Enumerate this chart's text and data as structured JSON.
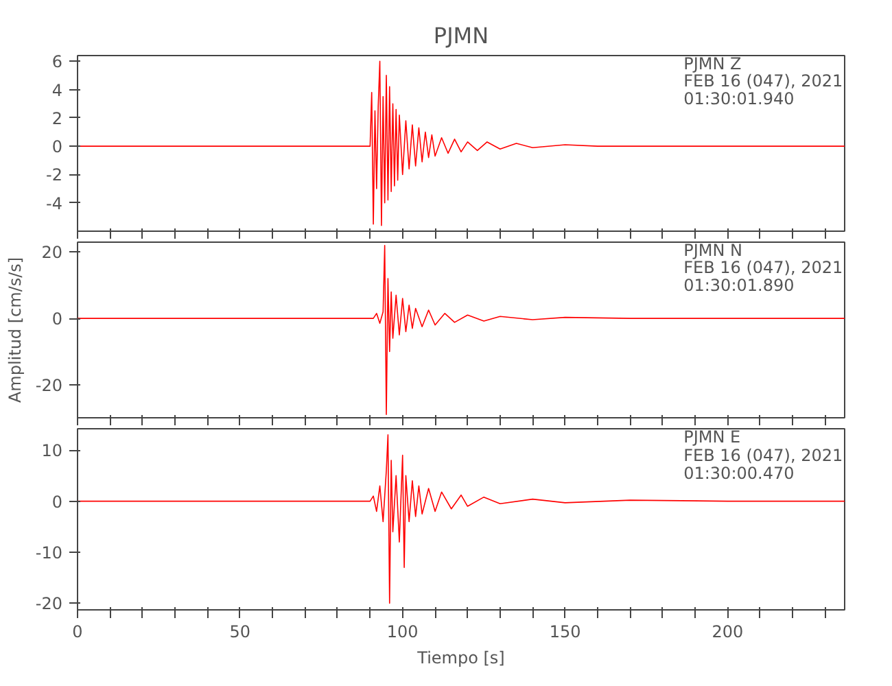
{
  "chart_data": [
    {
      "type": "line",
      "title": "PJMN",
      "xlim": [
        0,
        236
      ],
      "ylim": [
        -6.0,
        6.4
      ],
      "yticks": [
        -4,
        -2,
        0,
        2,
        4,
        6
      ],
      "tick_labels": "y",
      "grid": false,
      "line_style": "solid",
      "xticks": [
        0,
        {
          "value": 10,
          "label": null
        },
        {
          "value": 20,
          "label": null
        },
        {
          "value": 30,
          "label": null
        },
        {
          "value": 40,
          "label": null
        },
        50,
        {
          "value": 60,
          "label": null
        },
        {
          "value": 70,
          "label": null
        },
        {
          "value": 80,
          "label": null
        },
        {
          "value": 90,
          "label": null
        },
        100,
        {
          "value": 110,
          "label": null
        },
        {
          "value": 120,
          "label": null
        },
        {
          "value": 130,
          "label": null
        },
        {
          "value": 140,
          "label": null
        },
        150,
        {
          "value": 160,
          "label": null
        },
        {
          "value": 170,
          "label": null
        },
        {
          "value": 180,
          "label": null
        },
        {
          "value": 190,
          "label": null
        },
        200,
        {
          "value": 210,
          "label": null
        },
        {
          "value": 220,
          "label": null
        },
        {
          "value": 230,
          "label": null
        }
      ],
      "annotations": [
        "PJMN Z",
        "FEB 16 (047), 2021",
        "01:30:01.940"
      ],
      "series": [
        {
          "color": "#ff0000",
          "x": [
            0,
            20,
            40,
            60,
            80,
            90,
            90.5,
            91,
            91.5,
            92,
            92.5,
            93,
            93.5,
            94,
            94.5,
            95,
            95.5,
            96,
            96.5,
            97,
            97.5,
            98,
            98.5,
            99,
            100,
            101,
            102,
            103,
            104,
            105,
            106,
            107,
            108,
            109,
            110,
            112,
            114,
            116,
            118,
            120,
            123,
            126,
            130,
            135,
            140,
            150,
            160,
            180,
            200,
            220,
            236
          ],
          "values": [
            0,
            0,
            0,
            0,
            0,
            0,
            3.8,
            -5.5,
            2.5,
            -3.0,
            2.8,
            6.0,
            -5.6,
            3.5,
            -4.0,
            5.0,
            -3.8,
            4.2,
            -3.2,
            3.0,
            -2.8,
            2.6,
            -2.4,
            2.2,
            -2.0,
            1.8,
            -1.6,
            1.5,
            -1.4,
            1.3,
            -1.1,
            1.0,
            -0.8,
            0.8,
            -0.7,
            0.6,
            -0.5,
            0.5,
            -0.4,
            0.3,
            -0.3,
            0.3,
            -0.2,
            0.2,
            -0.1,
            0.1,
            0,
            0,
            0,
            0,
            0
          ]
        }
      ]
    },
    {
      "type": "line",
      "ylabel": "Amplitud [cm/s/s]",
      "xlim": [
        0,
        236
      ],
      "ylim": [
        -30,
        23
      ],
      "yticks": [
        -20,
        0,
        20
      ],
      "tick_labels": "y",
      "grid": false,
      "line_style": "solid",
      "xticks": [
        0,
        {
          "value": 10,
          "label": null
        },
        {
          "value": 20,
          "label": null
        },
        {
          "value": 30,
          "label": null
        },
        {
          "value": 40,
          "label": null
        },
        50,
        {
          "value": 60,
          "label": null
        },
        {
          "value": 70,
          "label": null
        },
        {
          "value": 80,
          "label": null
        },
        {
          "value": 90,
          "label": null
        },
        100,
        {
          "value": 110,
          "label": null
        },
        {
          "value": 120,
          "label": null
        },
        {
          "value": 130,
          "label": null
        },
        {
          "value": 140,
          "label": null
        },
        150,
        {
          "value": 160,
          "label": null
        },
        {
          "value": 170,
          "label": null
        },
        {
          "value": 180,
          "label": null
        },
        {
          "value": 190,
          "label": null
        },
        200,
        {
          "value": 210,
          "label": null
        },
        {
          "value": 220,
          "label": null
        },
        {
          "value": 230,
          "label": null
        }
      ],
      "annotations": [
        "PJMN N",
        "FEB 16 (047), 2021",
        "01:30:01.890"
      ],
      "series": [
        {
          "color": "#ff0000",
          "x": [
            0,
            40,
            80,
            91,
            92,
            93,
            94,
            94.5,
            95,
            95.5,
            96,
            96.5,
            97,
            98,
            99,
            100,
            101,
            102,
            103,
            104,
            106,
            108,
            110,
            113,
            116,
            120,
            125,
            130,
            140,
            150,
            170,
            200,
            236
          ],
          "values": [
            0,
            0,
            0,
            0,
            1.5,
            -1.5,
            2,
            22,
            -29,
            12,
            -10,
            8,
            -6,
            7,
            -5,
            6,
            -4,
            4,
            -3,
            3,
            -2.5,
            2.5,
            -2,
            1.5,
            -1.2,
            1,
            -0.8,
            0.6,
            -0.4,
            0.3,
            0,
            0,
            0
          ]
        }
      ]
    },
    {
      "type": "line",
      "xlabel": "Tiempo [s]",
      "xlim": [
        0,
        236
      ],
      "ylim": [
        -21.3,
        14.2
      ],
      "yticks": [
        -20,
        -10,
        0,
        10
      ],
      "grid": false,
      "line_style": "solid",
      "xticks": [
        0,
        {
          "value": 10,
          "label": null
        },
        {
          "value": 20,
          "label": null
        },
        {
          "value": 30,
          "label": null
        },
        {
          "value": 40,
          "label": null
        },
        50,
        {
          "value": 60,
          "label": null
        },
        {
          "value": 70,
          "label": null
        },
        {
          "value": 80,
          "label": null
        },
        {
          "value": 90,
          "label": null
        },
        100,
        {
          "value": 110,
          "label": null
        },
        {
          "value": 120,
          "label": null
        },
        {
          "value": 130,
          "label": null
        },
        {
          "value": 140,
          "label": null
        },
        150,
        {
          "value": 160,
          "label": null
        },
        {
          "value": 170,
          "label": null
        },
        {
          "value": 180,
          "label": null
        },
        {
          "value": 190,
          "label": null
        },
        200,
        {
          "value": 210,
          "label": null
        },
        {
          "value": 220,
          "label": null
        },
        {
          "value": 230,
          "label": null
        }
      ],
      "annotations": [
        "PJMN E",
        "FEB 16 (047), 2021",
        "01:30:00.470"
      ],
      "series": [
        {
          "color": "#ff0000",
          "x": [
            0,
            40,
            80,
            90,
            91,
            92,
            93,
            94,
            95,
            95.5,
            96,
            96.5,
            97,
            98,
            99,
            100,
            100.5,
            101,
            102,
            103,
            104,
            105,
            106,
            108,
            110,
            112,
            115,
            118,
            120,
            125,
            130,
            140,
            150,
            170,
            200,
            236
          ],
          "values": [
            0,
            0,
            0,
            0,
            1,
            -2,
            3,
            -4,
            6,
            13,
            -20,
            8,
            -6,
            5,
            -8,
            9,
            -13,
            5,
            -4,
            4,
            -3,
            3,
            -2.5,
            2.5,
            -2,
            1.8,
            -1.5,
            1.2,
            -1,
            0.8,
            -0.5,
            0.4,
            -0.3,
            0.2,
            0,
            0
          ]
        }
      ]
    }
  ]
}
